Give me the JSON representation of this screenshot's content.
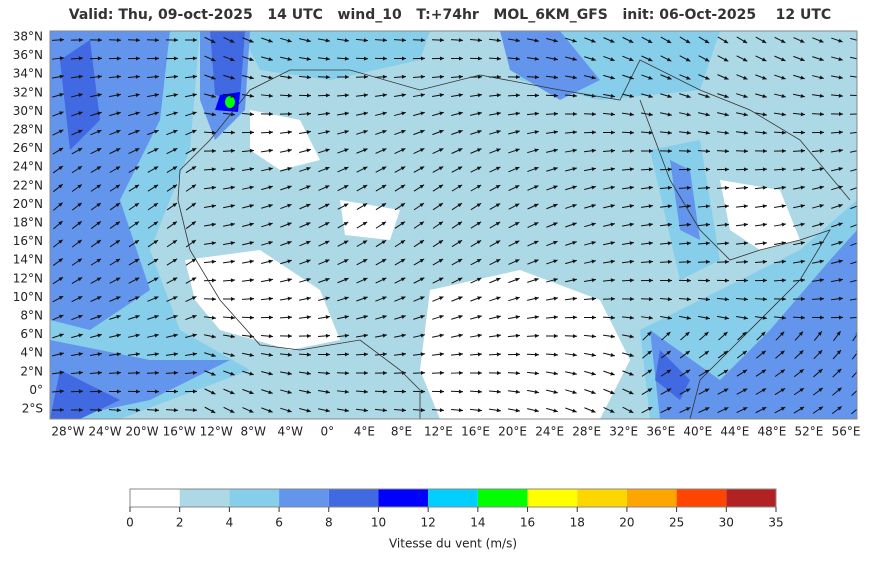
{
  "header": {
    "title": "Valid: Thu, 09-oct-2025   14 UTC   wind_10   T:+74hr   MOL_6KM_GFS   init: 06-Oct-2025    12 UTC"
  },
  "map": {
    "y_labels": [
      "38°N",
      "36°N",
      "34°N",
      "32°N",
      "30°N",
      "28°N",
      "26°N",
      "24°N",
      "22°N",
      "20°N",
      "18°N",
      "16°N",
      "14°N",
      "12°N",
      "10°N",
      "8°N",
      "6°N",
      "4°N",
      "2°N",
      "0°",
      "2°S"
    ],
    "x_labels": [
      "28°W",
      "24°W",
      "20°W",
      "16°W",
      "12°W",
      "8°W",
      "4°W",
      "0°",
      "4°E",
      "8°E",
      "12°E",
      "16°E",
      "20°E",
      "24°E",
      "28°E",
      "32°E",
      "36°E",
      "40°E",
      "44°E",
      "48°E",
      "52°E",
      "56°E"
    ]
  },
  "colorbar": {
    "ticks": [
      0,
      2,
      4,
      6,
      8,
      10,
      12,
      14,
      16,
      18,
      20,
      25,
      30,
      35
    ],
    "colors": [
      "#ffffff",
      "#add8e6",
      "#87ceeb",
      "#6495ed",
      "#4169e1",
      "#0000ff",
      "#00cfff",
      "#00ff00",
      "#ffff00",
      "#ffd700",
      "#ffa500",
      "#ff4500",
      "#b22222"
    ],
    "label": "Vitesse du vent (m/s)"
  }
}
